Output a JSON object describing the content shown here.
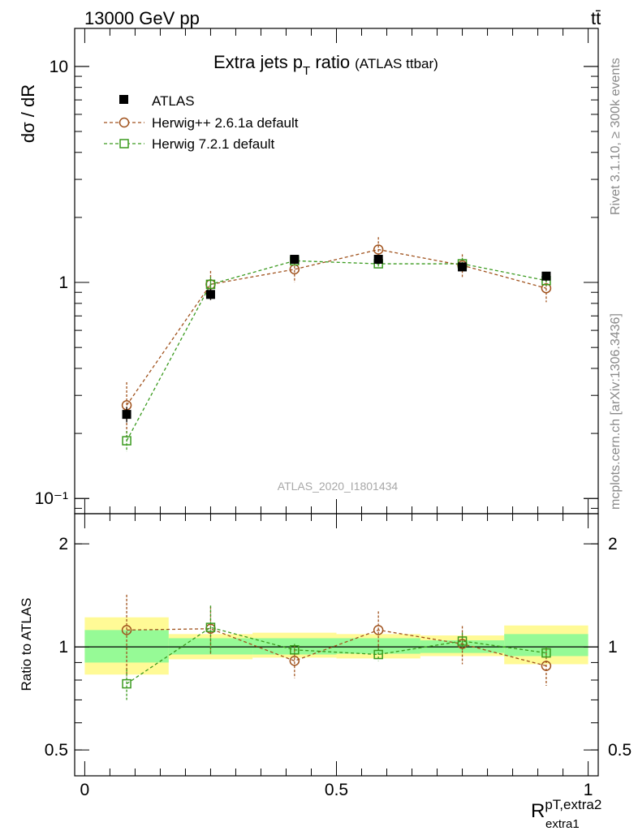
{
  "header": {
    "left": "13000 GeV pp",
    "right": "tt̄"
  },
  "chart_data": [
    {
      "type": "scatter",
      "title_main": "Extra jets p",
      "title_sub": "T",
      "title_tail": " ratio",
      "title_paren": "(ATLAS ttbar)",
      "analysis_id": "ATLAS_2020_I1801434",
      "ylabel": "dσ / dR",
      "yscale": "log",
      "ylim": [
        0.085,
        15
      ],
      "xlim": [
        -0.02,
        1.02
      ],
      "y_ticks": [
        {
          "v": 10,
          "label": "10"
        },
        {
          "v": 1,
          "label": "1"
        },
        {
          "v": 0.1,
          "label": "10⁻¹"
        }
      ],
      "x": [
        0.0833,
        0.25,
        0.4167,
        0.5833,
        0.75,
        0.9167
      ],
      "series": [
        {
          "name": "ATLAS",
          "marker": "square-filled",
          "color": "#000000",
          "dashed": false,
          "values": [
            0.245,
            0.88,
            1.28,
            1.28,
            1.18,
            1.07
          ],
          "err": [
            0.02,
            0.05,
            0.05,
            0.05,
            0.05,
            0.05
          ]
        },
        {
          "name": "Herwig++ 2.6.1a default",
          "marker": "circle-open",
          "color": "#a0521d",
          "dashed": true,
          "values": [
            0.27,
            0.98,
            1.15,
            1.42,
            1.2,
            0.94
          ],
          "err": [
            0.075,
            0.15,
            0.15,
            0.2,
            0.15,
            0.13
          ]
        },
        {
          "name": "Herwig 7.2.1 default",
          "marker": "square-open",
          "color": "#3a9a1e",
          "dashed": true,
          "values": [
            0.185,
            0.98,
            1.26,
            1.22,
            1.22,
            1.02
          ],
          "err": [
            0.02,
            0.08,
            0.06,
            0.05,
            0.08,
            0.05
          ]
        }
      ]
    },
    {
      "type": "scatter",
      "ylabel": "Ratio to ATLAS",
      "xlabel_main": "R",
      "xlabel_sup": "pT,extra2",
      "xlabel_sub": "extra1",
      "yscale": "log",
      "ylim": [
        0.42,
        2.45
      ],
      "xlim": [
        -0.02,
        1.02
      ],
      "y_ticks": [
        {
          "v": 2,
          "label": "2"
        },
        {
          "v": 1,
          "label": "1"
        },
        {
          "v": 0.5,
          "label": "0.5"
        }
      ],
      "x_ticks": [
        {
          "v": 0,
          "label": "0"
        },
        {
          "v": 0.5,
          "label": "0.5"
        },
        {
          "v": 1,
          "label": "1"
        }
      ],
      "bands": [
        {
          "x0": 0.0,
          "x1": 0.1667,
          "yellow": [
            0.83,
            1.22
          ],
          "green": [
            0.9,
            1.12
          ]
        },
        {
          "x0": 0.1667,
          "x1": 0.3333,
          "yellow": [
            0.92,
            1.09
          ],
          "green": [
            0.95,
            1.06
          ]
        },
        {
          "x0": 0.3333,
          "x1": 0.5,
          "yellow": [
            0.93,
            1.1
          ],
          "green": [
            0.95,
            1.06
          ]
        },
        {
          "x0": 0.5,
          "x1": 0.6667,
          "yellow": [
            0.925,
            1.09
          ],
          "green": [
            0.955,
            1.06
          ]
        },
        {
          "x0": 0.6667,
          "x1": 0.8333,
          "yellow": [
            0.94,
            1.08
          ],
          "green": [
            0.96,
            1.045
          ]
        },
        {
          "x0": 0.8333,
          "x1": 1.0,
          "yellow": [
            0.89,
            1.155
          ],
          "green": [
            0.94,
            1.09
          ]
        }
      ],
      "series": [
        {
          "name": "Herwig++ 2.6.1a default",
          "color": "#a0521d",
          "marker": "circle-open",
          "values": [
            1.12,
            1.13,
            0.91,
            1.12,
            1.02,
            0.88
          ],
          "err": [
            0.3,
            0.18,
            0.1,
            0.15,
            0.13,
            0.11
          ]
        },
        {
          "name": "Herwig 7.2.1 default",
          "color": "#3a9a1e",
          "marker": "square-open",
          "values": [
            0.78,
            1.14,
            0.98,
            0.95,
            1.04,
            0.96
          ],
          "err": [
            0.08,
            0.18,
            0.04,
            0.04,
            0.06,
            0.04
          ]
        }
      ]
    }
  ],
  "side_text": {
    "rivet": "Rivet 3.1.10, ≥ 300k events",
    "mcplots": "mcplots.cern.ch [arXiv:1306.3436]"
  }
}
